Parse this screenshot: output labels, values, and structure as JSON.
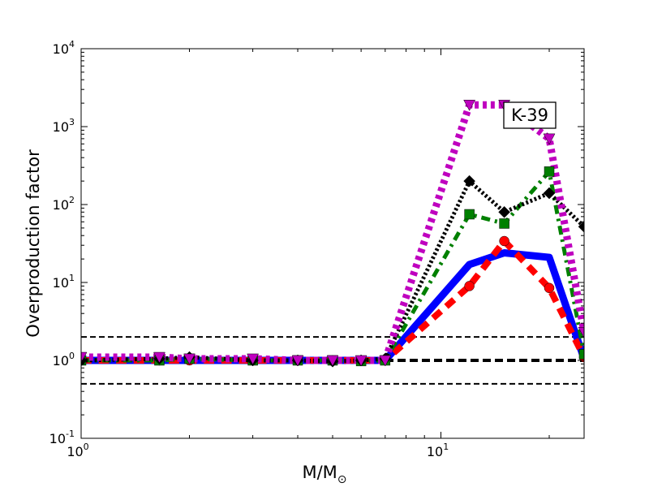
{
  "chart_data": {
    "type": "line",
    "title": "",
    "xlabel": "M/M",
    "xlabel_sub": "⊙",
    "ylabel": "Overproduction factor",
    "xscale": "log",
    "yscale": "log",
    "xlim": [
      1,
      25
    ],
    "ylim": [
      0.1,
      10000
    ],
    "grid": false,
    "legend": "none",
    "annotation": "K-39",
    "x_ticks": [
      {
        "value": 1,
        "base": "10",
        "exp": "0"
      },
      {
        "value": 10,
        "base": "10",
        "exp": "1"
      }
    ],
    "y_ticks": [
      {
        "value": 0.1,
        "base": "10",
        "exp": "-1"
      },
      {
        "value": 1,
        "base": "10",
        "exp": "0"
      },
      {
        "value": 10,
        "base": "10",
        "exp": "1"
      },
      {
        "value": 100,
        "base": "10",
        "exp": "2"
      },
      {
        "value": 1000,
        "base": "10",
        "exp": "3"
      },
      {
        "value": 10000,
        "base": "10",
        "exp": "4"
      }
    ],
    "reference_lines": [
      {
        "y": 2.0,
        "style": "dashed",
        "color": "#000000",
        "width": 2
      },
      {
        "y": 1.0,
        "style": "dashed",
        "color": "#000000",
        "width": 4
      },
      {
        "y": 0.5,
        "style": "dashed",
        "color": "#000000",
        "width": 2
      }
    ],
    "series": [
      {
        "color": "#0000ff",
        "linestyle": "solid",
        "width": 9,
        "marker": "none",
        "x": [
          1.0,
          1.65,
          2.0,
          3.0,
          4.0,
          5.0,
          6.0,
          7.0,
          12.0,
          15.0,
          20.0,
          25.0
        ],
        "y": [
          1.0,
          1.0,
          1.0,
          1.0,
          1.0,
          1.0,
          1.0,
          1.0,
          17,
          24,
          21,
          1.05
        ]
      },
      {
        "color": "#ff0000",
        "linestyle": "dashed",
        "width": 8,
        "marker": "circle",
        "x": [
          1.0,
          1.65,
          2.0,
          3.0,
          4.0,
          5.0,
          6.0,
          7.0,
          12.0,
          15.0,
          20.0,
          25.0
        ],
        "y": [
          1.0,
          1.0,
          1.0,
          1.0,
          1.0,
          1.0,
          1.0,
          1.0,
          9,
          34,
          8.5,
          1.1
        ]
      },
      {
        "color": "#008000",
        "linestyle": "dashdot",
        "width": 5,
        "marker": "square",
        "x": [
          1.0,
          1.65,
          2.0,
          3.0,
          4.0,
          5.0,
          6.0,
          7.0,
          12.0,
          15.0,
          20.0,
          25.0
        ],
        "y": [
          1.0,
          1.0,
          1.05,
          1.0,
          1.0,
          1.0,
          0.98,
          1.0,
          75,
          57,
          265,
          1.2
        ]
      },
      {
        "color": "#000000",
        "linestyle": "dotted",
        "width": 5,
        "marker": "diamond",
        "x": [
          1.0,
          1.65,
          2.0,
          3.0,
          4.0,
          5.0,
          6.0,
          7.0,
          12.0,
          15.0,
          20.0,
          25.0
        ],
        "y": [
          1.0,
          1.05,
          1.1,
          1.0,
          1.0,
          0.97,
          1.0,
          1.05,
          200,
          80,
          140,
          52
        ]
      },
      {
        "color": "#bf00bf",
        "linestyle": "dotted",
        "width": 9,
        "marker": "triangle-down",
        "x": [
          1.0,
          1.65,
          2.0,
          3.0,
          4.0,
          5.0,
          6.0,
          7.0,
          12.0,
          15.0,
          20.0,
          25.0
        ],
        "y": [
          1.1,
          1.1,
          1.05,
          1.05,
          1.0,
          1.0,
          1.0,
          1.0,
          1900,
          1900,
          700,
          2.3
        ]
      }
    ]
  }
}
